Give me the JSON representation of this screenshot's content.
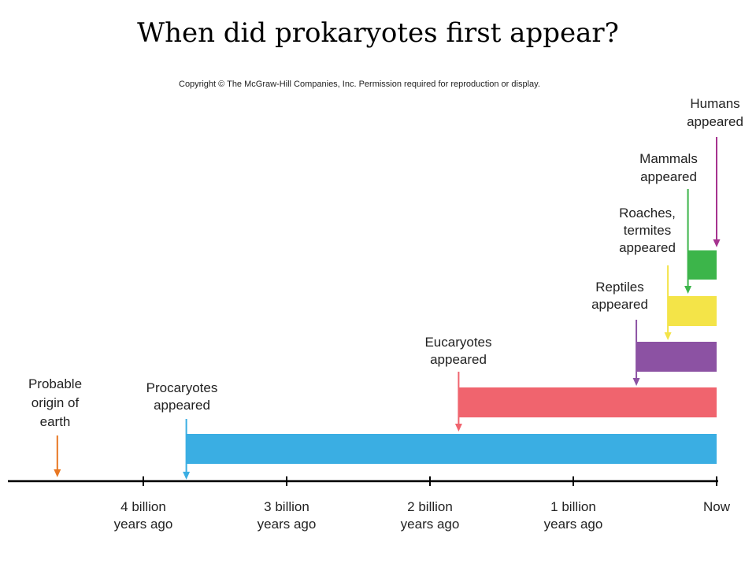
{
  "title": "When did prokaryotes first appear?",
  "copyright": "Copyright © The McGraw-Hill Companies, Inc. Permission required for reproduction or display.",
  "axis": {
    "ticks": [
      {
        "value": 4,
        "lines": [
          "4 billion",
          "years ago"
        ]
      },
      {
        "value": 3,
        "lines": [
          "3 billion",
          "years ago"
        ]
      },
      {
        "value": 2,
        "lines": [
          "2 billion",
          "years ago"
        ]
      },
      {
        "value": 1,
        "lines": [
          "1 billion",
          "years ago"
        ]
      },
      {
        "value": 0,
        "lines": [
          "Now"
        ]
      }
    ],
    "range_billion_years_ago": [
      4.95,
      0
    ]
  },
  "events": [
    {
      "key": "earth",
      "lines": [
        "Probable",
        "origin of",
        "earth"
      ],
      "billion_years_ago": 4.6,
      "color": "#e87722",
      "bar": false
    },
    {
      "key": "procaryotes",
      "lines": [
        "Procaryotes",
        "appeared"
      ],
      "billion_years_ago": 3.7,
      "color": "#3aaee3",
      "bar": true
    },
    {
      "key": "eucaryotes",
      "lines": [
        "Eucaryotes",
        "appeared"
      ],
      "billion_years_ago": 1.8,
      "color": "#f0646e",
      "bar": true
    },
    {
      "key": "reptiles",
      "lines": [
        "Reptiles",
        "appeared"
      ],
      "billion_years_ago": 0.56,
      "color": "#8c52a3",
      "bar": true
    },
    {
      "key": "roaches",
      "lines": [
        "Roaches,",
        "termites",
        "appeared"
      ],
      "billion_years_ago": 0.34,
      "color": "#f4e448",
      "bar": true
    },
    {
      "key": "mammals",
      "lines": [
        "Mammals",
        "appeared"
      ],
      "billion_years_ago": 0.2,
      "color": "#3cb54a",
      "bar": true
    },
    {
      "key": "humans",
      "lines": [
        "Humans",
        "appeared"
      ],
      "billion_years_ago": 0.0,
      "color": "#a6338f",
      "bar": false
    }
  ]
}
